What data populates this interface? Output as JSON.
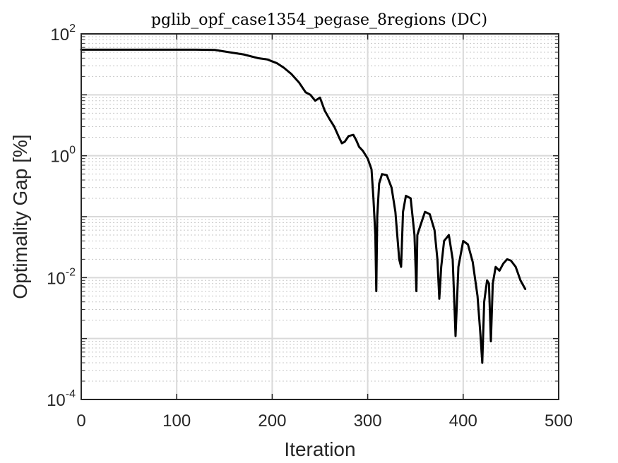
{
  "chart_data": {
    "type": "line",
    "title": "pglib_opf_case1354_pegase_8regions (DC)",
    "xlabel": "Iteration",
    "ylabel": "Optimality Gap [%]",
    "xlim": [
      0,
      500
    ],
    "ylim": [
      0.0001,
      100
    ],
    "yscale": "log",
    "grid": true,
    "minor_grid": true,
    "x_ticks": [
      0,
      100,
      200,
      300,
      400,
      500
    ],
    "x_tick_labels": [
      "0",
      "100",
      "200",
      "300",
      "400",
      "500"
    ],
    "y_ticks": [
      0.0001,
      0.01,
      1,
      100
    ],
    "y_tick_labels": [
      {
        "base": "10",
        "exp": "-4"
      },
      {
        "base": "10",
        "exp": "-2"
      },
      {
        "base": "10",
        "exp": "0"
      },
      {
        "base": "10",
        "exp": "2"
      }
    ],
    "series": [
      {
        "color": "#000000",
        "x": [
          0,
          20,
          50,
          80,
          100,
          120,
          140,
          155,
          170,
          185,
          195,
          205,
          212,
          220,
          228,
          235,
          240,
          245,
          250,
          255,
          260,
          265,
          270,
          273,
          276,
          280,
          285,
          288,
          291,
          295,
          300,
          304,
          306,
          308,
          309,
          310,
          312,
          315,
          320,
          325,
          329,
          333,
          335,
          337,
          340,
          345,
          349,
          351,
          352,
          355,
          360,
          365,
          370,
          373,
          375,
          377,
          380,
          385,
          389,
          391,
          392,
          395,
          400,
          405,
          410,
          415,
          418,
          420,
          422,
          425,
          427,
          429,
          431,
          434,
          438,
          442,
          446,
          450,
          455,
          460,
          465
        ],
        "y": [
          55,
          55,
          55,
          55,
          55,
          55,
          54.5,
          50,
          46,
          40,
          38,
          33,
          28,
          22,
          16,
          11,
          10,
          8,
          9,
          5.5,
          4,
          3,
          2,
          1.6,
          1.7,
          2.1,
          2.2,
          1.8,
          1.4,
          1.2,
          0.9,
          0.6,
          0.2,
          0.05,
          0.006,
          0.1,
          0.35,
          0.5,
          0.48,
          0.3,
          0.12,
          0.02,
          0.015,
          0.12,
          0.22,
          0.2,
          0.05,
          0.006,
          0.05,
          0.07,
          0.12,
          0.11,
          0.06,
          0.02,
          0.0045,
          0.015,
          0.04,
          0.05,
          0.02,
          0.003,
          0.0011,
          0.015,
          0.04,
          0.035,
          0.018,
          0.005,
          0.0012,
          0.0004,
          0.004,
          0.009,
          0.008,
          0.0009,
          0.008,
          0.015,
          0.013,
          0.017,
          0.02,
          0.019,
          0.015,
          0.009,
          0.0065
        ]
      }
    ]
  }
}
